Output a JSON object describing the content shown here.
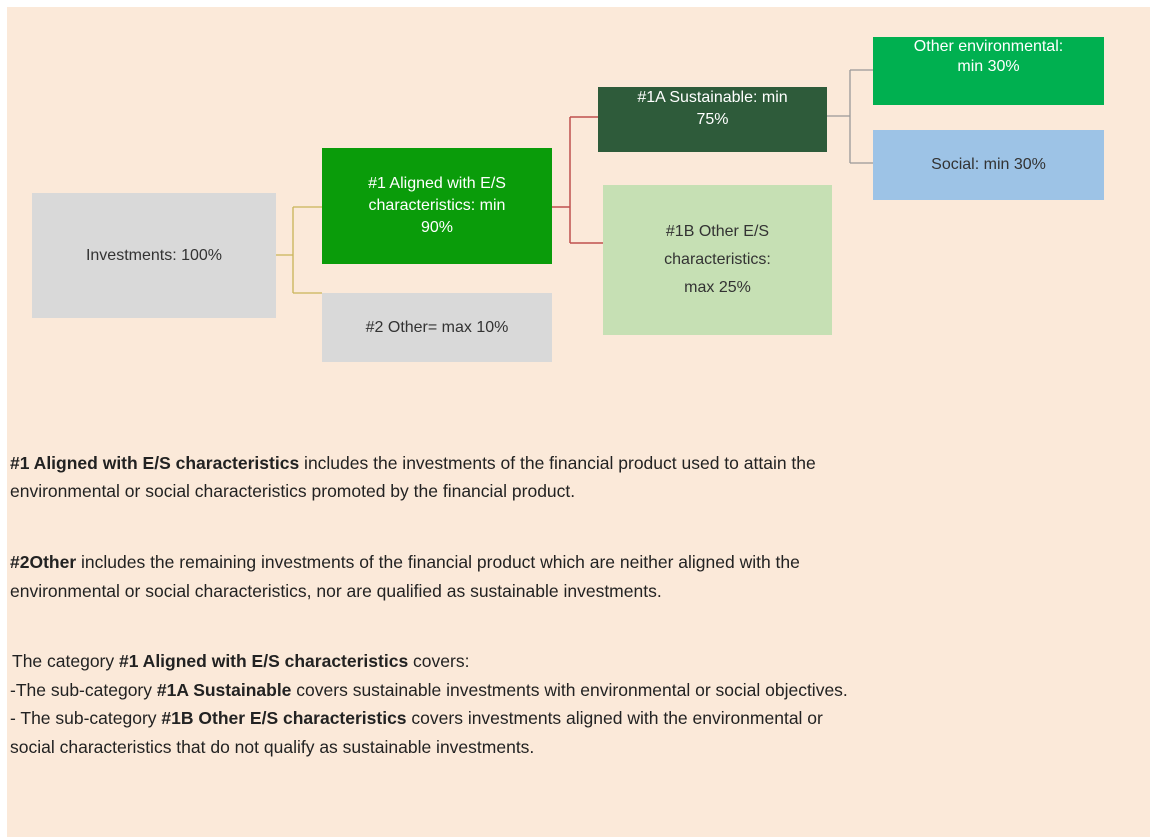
{
  "nodes": [
    {
      "lines": [
        "Investments: 100%"
      ]
    },
    {
      "lines": [
        "#1 Aligned with E/S",
        "characteristics: min",
        "90%"
      ]
    },
    {
      "lines": [
        "#2 Other= max 10%"
      ]
    },
    {
      "lines": [
        "#1A Sustainable: min",
        "75%"
      ]
    },
    {
      "lines": [
        "#1B Other E/S",
        "characteristics:",
        "max 25%"
      ]
    },
    {
      "lines": [
        "Other environmental:",
        "min 30%"
      ]
    },
    {
      "lines": [
        "Social: min 30%"
      ]
    }
  ],
  "paragraphs": [
    {
      "lines": [
        {
          "runs": [
            {
              "text": "#1 Aligned with E/S characteristics",
              "bold": true
            },
            {
              "text": " includes the investments of the financial product used to attain the"
            }
          ]
        },
        {
          "runs": [
            {
              "text": "environmental or social characteristics promoted by the financial product."
            }
          ]
        }
      ]
    },
    {
      "lines": [
        {
          "runs": [
            {
              "text": "#2Other",
              "bold": true
            },
            {
              "text": " includes the remaining investments of the financial product which are neither aligned with the"
            }
          ]
        },
        {
          "runs": [
            {
              "text": "environmental or social characteristics, nor are qualified as sustainable investments."
            }
          ]
        }
      ]
    },
    {
      "lines": [
        {
          "runs": [
            {
              "text": "The category "
            },
            {
              "text": "#1 Aligned with E/S characteristics",
              "bold": true
            },
            {
              "text": " covers:"
            }
          ]
        },
        {
          "runs": [
            {
              "text": "-The sub-category "
            },
            {
              "text": "#1A Sustainable",
              "bold": true
            },
            {
              "text": " covers sustainable investments with environmental or social objectives."
            }
          ]
        },
        {
          "runs": [
            {
              "text": "- The sub-category "
            },
            {
              "text": "#1B Other E/S characteristics",
              "bold": true
            },
            {
              "text": " covers investments aligned with the environmental or"
            }
          ]
        },
        {
          "runs": [
            {
              "text": "social characteristics that do not qualify as sustainable investments."
            }
          ]
        }
      ]
    }
  ]
}
